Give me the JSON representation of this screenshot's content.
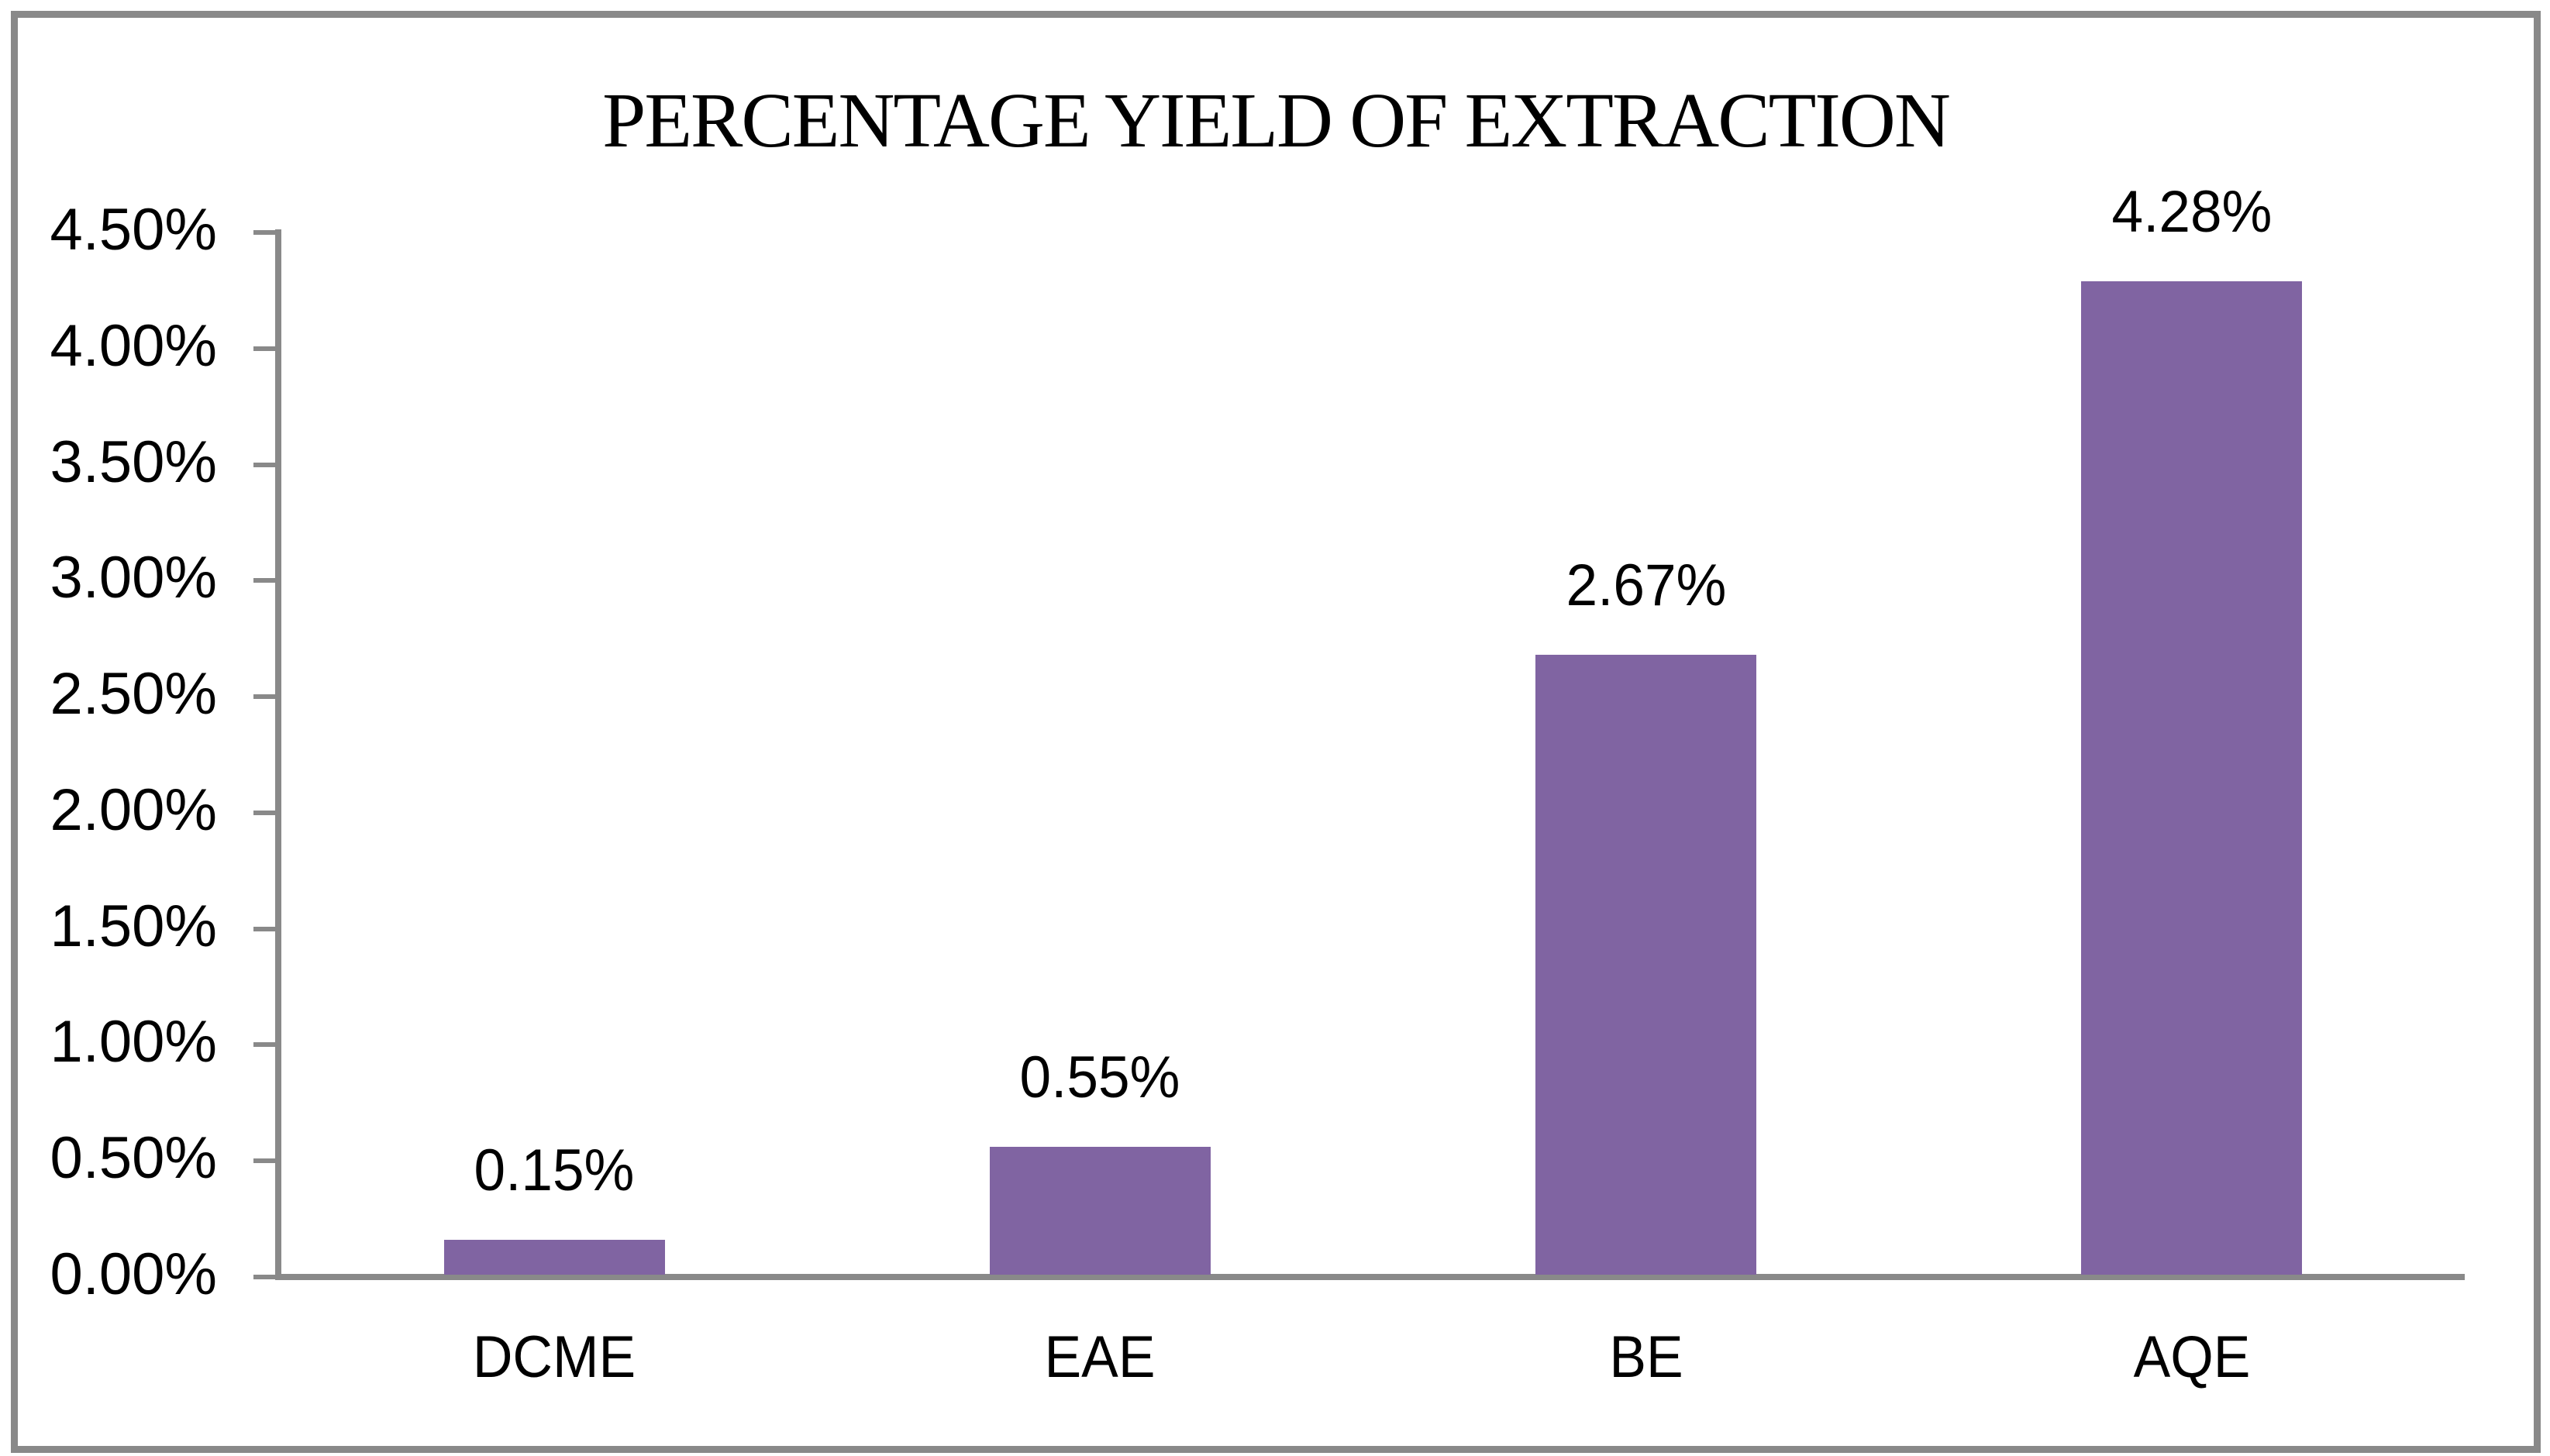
{
  "chart_data": {
    "type": "bar",
    "title": "PERCENTAGE YIELD OF EXTRACTION",
    "categories": [
      "DCME",
      "EAE",
      "BE",
      "AQE"
    ],
    "values": [
      0.15,
      0.55,
      2.67,
      4.28
    ],
    "value_labels": [
      "0.15%",
      "0.55%",
      "2.67%",
      "4.28%"
    ],
    "y_tick_labels": [
      "4.50%",
      "4.00%",
      "3.50%",
      "3.00%",
      "2.50%",
      "2.00%",
      "1.50%",
      "1.00%",
      "0.50%",
      "0.00%"
    ],
    "ylim": [
      0,
      4.5
    ],
    "xlabel": "",
    "ylabel": "",
    "grid": "off",
    "legend": "none",
    "colors": {
      "bar": "#8064A2",
      "axis": "#898989",
      "frame_border": "#898989",
      "text": "#000000",
      "background": "#ffffff"
    }
  }
}
